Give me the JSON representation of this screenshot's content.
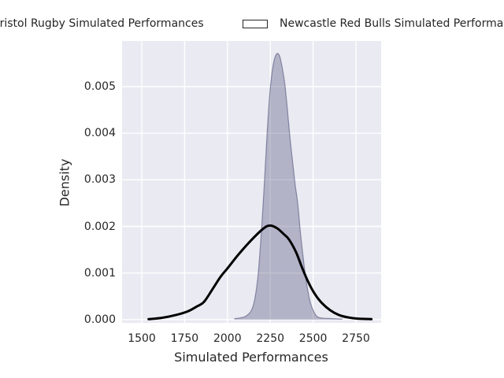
{
  "figure": {
    "background": "#ffffff",
    "text_color": "#262626",
    "legend": {
      "entries": [
        {
          "label": "Bristol Rugby Simulated Performances",
          "marker": "filled-patch"
        },
        {
          "label": "Newcastle Red Bulls Simulated Performances",
          "marker": "open-patch"
        }
      ]
    }
  },
  "chart_data": {
    "type": "area",
    "title": "",
    "xlabel": "Simulated Performances",
    "ylabel": "Density",
    "grid": true,
    "legend_position": "top-outside",
    "plot_bg": "#eaeaf2",
    "grid_color": "#ffffff",
    "xlim": [
      1385,
      2897
    ],
    "ylim": [
      -7e-05,
      0.00598
    ],
    "x_ticks": [
      1500,
      1750,
      2000,
      2250,
      2500,
      2750
    ],
    "x_tick_labels": [
      "1500",
      "1750",
      "2000",
      "2250",
      "2500",
      "2750"
    ],
    "y_ticks": [
      0,
      0.001,
      0.002,
      0.003,
      0.004,
      0.005
    ],
    "y_tick_labels": [
      "0.000",
      "0.001",
      "0.002",
      "0.003",
      "0.004",
      "0.005"
    ],
    "series": [
      {
        "name": "Bristol Rugby Simulated Performances",
        "style": "kde-filled",
        "fill_color": "rgba(80,84,122,0.36)",
        "line_color": "rgba(80,84,122,0.6)",
        "line_width": 1.2,
        "peak": {
          "x": 2290,
          "density": 0.00571
        },
        "points": [
          [
            2040,
            2e-05
          ],
          [
            2080,
            4e-05
          ],
          [
            2110,
            8e-05
          ],
          [
            2140,
            0.0002
          ],
          [
            2160,
            0.00045
          ],
          [
            2180,
            0.001
          ],
          [
            2200,
            0.002
          ],
          [
            2215,
            0.0029
          ],
          [
            2230,
            0.0039
          ],
          [
            2245,
            0.00475
          ],
          [
            2260,
            0.0053
          ],
          [
            2275,
            0.0056
          ],
          [
            2290,
            0.00571
          ],
          [
            2305,
            0.00565
          ],
          [
            2320,
            0.0054
          ],
          [
            2335,
            0.00505
          ],
          [
            2350,
            0.0045
          ],
          [
            2365,
            0.0039
          ],
          [
            2380,
            0.0034
          ],
          [
            2395,
            0.0029
          ],
          [
            2410,
            0.0025
          ],
          [
            2425,
            0.0019
          ],
          [
            2440,
            0.0014
          ],
          [
            2455,
            0.00095
          ],
          [
            2470,
            0.0006
          ],
          [
            2485,
            0.00035
          ],
          [
            2500,
            0.0002
          ],
          [
            2515,
            0.0001
          ],
          [
            2530,
            5e-05
          ],
          [
            2560,
            3e-05
          ],
          [
            2620,
            2e-05
          ],
          [
            2670,
            1e-05
          ]
        ]
      },
      {
        "name": "Newcastle Red Bulls Simulated Performances",
        "style": "kde-line",
        "line_color": "#000000",
        "line_width": 3,
        "peak": {
          "x": 2250,
          "density": 0.00202
        },
        "points": [
          [
            1540,
            1e-05
          ],
          [
            1620,
            4e-05
          ],
          [
            1700,
            0.0001
          ],
          [
            1770,
            0.00018
          ],
          [
            1820,
            0.00028
          ],
          [
            1863,
            0.00038
          ],
          [
            1914,
            0.00066
          ],
          [
            1960,
            0.00092
          ],
          [
            2000,
            0.0011
          ],
          [
            2065,
            0.0014
          ],
          [
            2143,
            0.00172
          ],
          [
            2212,
            0.00196
          ],
          [
            2250,
            0.00202
          ],
          [
            2290,
            0.00196
          ],
          [
            2330,
            0.00183
          ],
          [
            2359,
            0.00172
          ],
          [
            2400,
            0.00145
          ],
          [
            2434,
            0.00113
          ],
          [
            2470,
            0.00082
          ],
          [
            2510,
            0.00055
          ],
          [
            2550,
            0.00036
          ],
          [
            2600,
            0.0002
          ],
          [
            2650,
            0.0001
          ],
          [
            2700,
            5e-05
          ],
          [
            2760,
            2e-05
          ],
          [
            2840,
            1e-05
          ]
        ]
      }
    ]
  }
}
